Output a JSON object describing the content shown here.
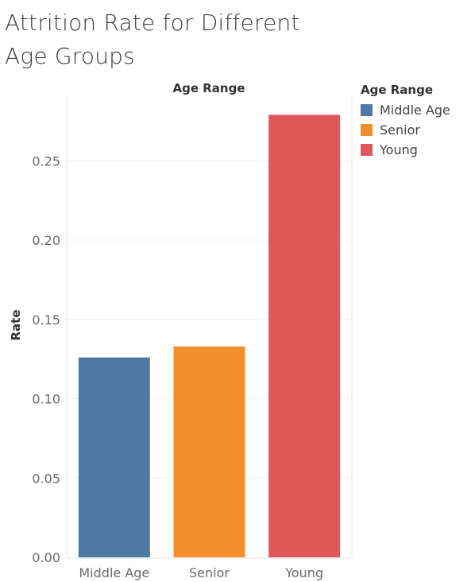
{
  "title_lines": [
    "Attrition Rate for Different",
    "Age Groups"
  ],
  "legend": {
    "title": "Age Range",
    "items": [
      {
        "label": "Middle Age",
        "color": "#4e79a7"
      },
      {
        "label": "Senior",
        "color": "#f28e2b"
      },
      {
        "label": "Young",
        "color": "#e15759"
      }
    ]
  },
  "chart_data": {
    "type": "bar",
    "xlabel": "Age Range",
    "ylabel": "Rate",
    "categories": [
      "Middle Age",
      "Senior",
      "Young"
    ],
    "values": [
      0.126,
      0.133,
      0.279
    ],
    "colors": [
      "#4e79a7",
      "#f28e2b",
      "#e15759"
    ],
    "ylim": [
      0,
      0.28
    ],
    "yticks": [
      "0.00",
      "0.05",
      "0.10",
      "0.15",
      "0.20",
      "0.25"
    ],
    "ytick_values": [
      0,
      0.05,
      0.1,
      0.15,
      0.2,
      0.25
    ],
    "grid": true,
    "legend_position": "right"
  }
}
